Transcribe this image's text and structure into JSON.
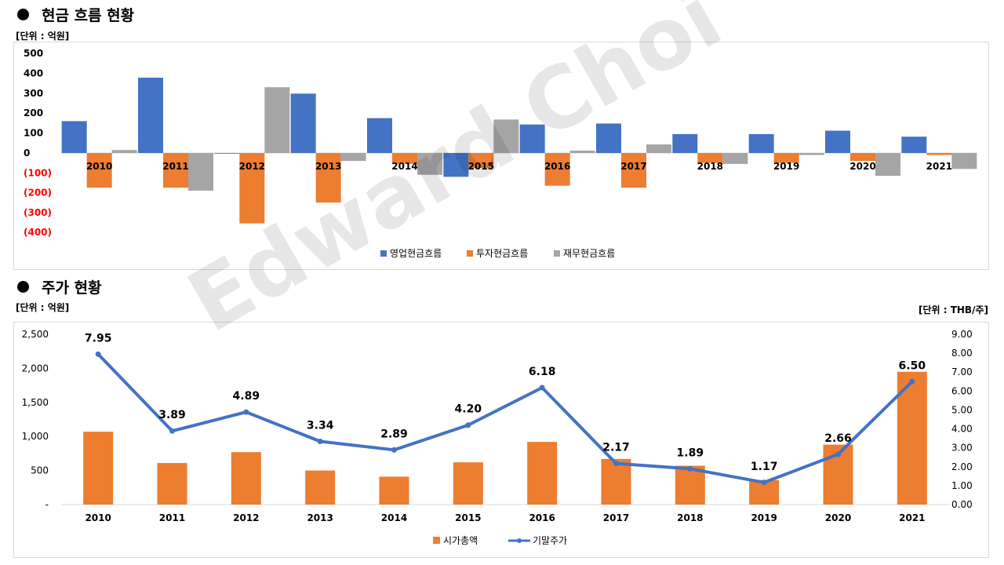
{
  "section1": {
    "title": "현금 흐름 현황",
    "unit": "[단위 : 억원]"
  },
  "section2": {
    "title": "주가 현황",
    "unit_left": "[단위 : 억원]",
    "unit_right": "[단위 : THB/주]"
  },
  "watermark": "Edward Choi",
  "colors": {
    "blue": "#4472C4",
    "orange": "#ED7D31",
    "gray": "#A5A5A5",
    "neg_label": "#FF0000"
  },
  "chart_data": [
    {
      "type": "bar",
      "title": "현금 흐름 현황",
      "categories": [
        "2010",
        "2011",
        "2012",
        "2013",
        "2014",
        "2015",
        "2016",
        "2017",
        "2018",
        "2019",
        "2020",
        "2021"
      ],
      "series": [
        {
          "name": "영업현금흐름",
          "values": [
            160,
            378,
            -3,
            298,
            175,
            -120,
            143,
            148,
            95,
            95,
            112,
            82
          ]
        },
        {
          "name": "투자현금흐름",
          "values": [
            -175,
            -175,
            -355,
            -250,
            -55,
            -75,
            -165,
            -175,
            -50,
            -50,
            -40,
            -10
          ]
        },
        {
          "name": "재무현금흐름",
          "values": [
            15,
            -190,
            330,
            -40,
            -110,
            168,
            12,
            43,
            -55,
            -10,
            -115,
            -80
          ]
        }
      ],
      "ylim": [
        -400,
        500
      ],
      "yticks": [
        "500",
        "400",
        "300",
        "200",
        "100",
        "0",
        "(100)",
        "(200)",
        "(300)",
        "(400)"
      ],
      "legend_position": "bottom"
    },
    {
      "type": "bar",
      "title": "주가 현황",
      "categories": [
        "2010",
        "2011",
        "2012",
        "2013",
        "2014",
        "2015",
        "2016",
        "2017",
        "2018",
        "2019",
        "2020",
        "2021"
      ],
      "bars": {
        "name": "시가총액",
        "values": [
          1070,
          610,
          770,
          500,
          410,
          620,
          920,
          670,
          570,
          360,
          880,
          1950
        ]
      },
      "line": {
        "name": "기말주가",
        "values": [
          7.95,
          3.89,
          4.89,
          3.34,
          2.89,
          4.2,
          6.18,
          2.17,
          1.89,
          1.17,
          2.66,
          6.5
        ],
        "labels": [
          "7.95",
          "3.89",
          "4.89",
          "3.34",
          "2.89",
          "4.20",
          "6.18",
          "2.17",
          "1.89",
          "1.17",
          "2.66",
          "6.50"
        ]
      },
      "ylim_left": [
        0,
        2500
      ],
      "ylim_right": [
        0,
        9
      ],
      "yticks_left": [
        "2,500",
        "2,000",
        "1,500",
        "1,000",
        "500",
        "-"
      ],
      "yticks_right": [
        "9.00",
        "8.00",
        "7.00",
        "6.00",
        "5.00",
        "4.00",
        "3.00",
        "2.00",
        "1.00",
        "0.00"
      ],
      "legend_position": "bottom"
    }
  ]
}
